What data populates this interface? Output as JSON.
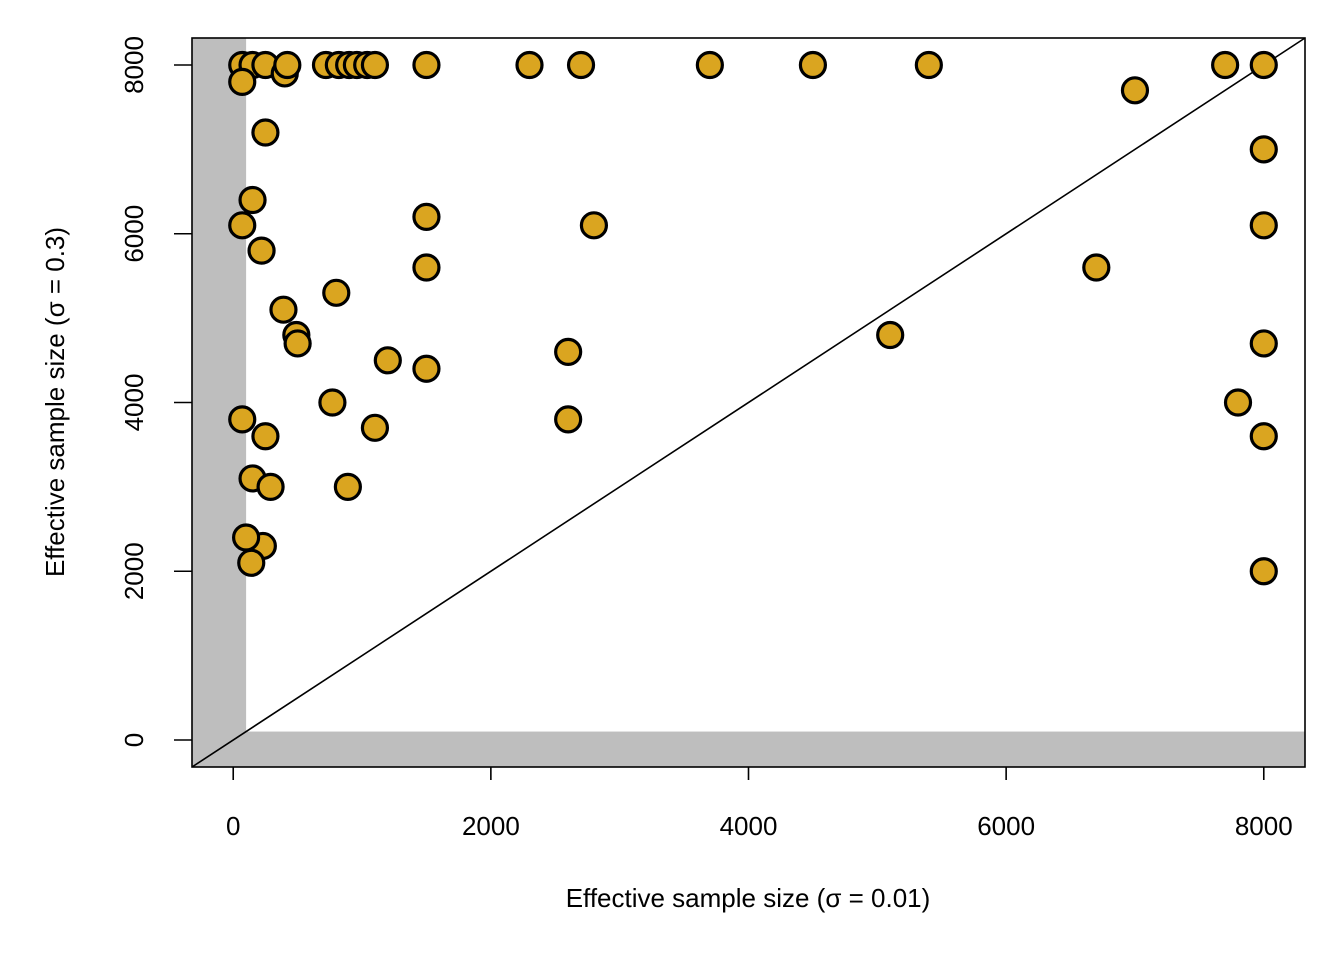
{
  "chart_data": {
    "type": "scatter",
    "xlabel": "Effective sample size (σ = 0.01)",
    "ylabel": "Effective sample size (σ = 0.3)",
    "xlim": [
      -320,
      8320
    ],
    "ylim": [
      -320,
      8320
    ],
    "xticks": [
      0,
      2000,
      4000,
      6000,
      8000
    ],
    "yticks": [
      0,
      2000,
      4000,
      6000,
      8000
    ],
    "xtick_labels": [
      "0",
      "2000",
      "4000",
      "6000",
      "8000"
    ],
    "ytick_labels": [
      "0",
      "2000",
      "4000",
      "6000",
      "8000"
    ],
    "shaded_threshold": 100,
    "shade_color": "#bebebe",
    "point_color": "#daa520",
    "reference_line": "y = x",
    "grid": false,
    "legend": "none",
    "points": [
      {
        "x": 70,
        "y": 8000
      },
      {
        "x": 150,
        "y": 8000
      },
      {
        "x": 250,
        "y": 8000
      },
      {
        "x": 400,
        "y": 7900
      },
      {
        "x": 420,
        "y": 8000
      },
      {
        "x": 720,
        "y": 8000
      },
      {
        "x": 820,
        "y": 8000
      },
      {
        "x": 900,
        "y": 8000
      },
      {
        "x": 960,
        "y": 8000
      },
      {
        "x": 1040,
        "y": 8000
      },
      {
        "x": 1100,
        "y": 8000
      },
      {
        "x": 1500,
        "y": 8000
      },
      {
        "x": 2300,
        "y": 8000
      },
      {
        "x": 2700,
        "y": 8000
      },
      {
        "x": 3700,
        "y": 8000
      },
      {
        "x": 4500,
        "y": 8000
      },
      {
        "x": 5400,
        "y": 8000
      },
      {
        "x": 7700,
        "y": 8000
      },
      {
        "x": 8000,
        "y": 8000
      },
      {
        "x": 70,
        "y": 7800
      },
      {
        "x": 250,
        "y": 7200
      },
      {
        "x": 7000,
        "y": 7700
      },
      {
        "x": 8000,
        "y": 7000
      },
      {
        "x": 150,
        "y": 6400
      },
      {
        "x": 70,
        "y": 6100
      },
      {
        "x": 220,
        "y": 5800
      },
      {
        "x": 1500,
        "y": 6200
      },
      {
        "x": 2800,
        "y": 6100
      },
      {
        "x": 8000,
        "y": 6100
      },
      {
        "x": 1500,
        "y": 5600
      },
      {
        "x": 6700,
        "y": 5600
      },
      {
        "x": 800,
        "y": 5300
      },
      {
        "x": 390,
        "y": 5100
      },
      {
        "x": 490,
        "y": 4800
      },
      {
        "x": 500,
        "y": 4700
      },
      {
        "x": 5100,
        "y": 4800
      },
      {
        "x": 8000,
        "y": 4700
      },
      {
        "x": 2600,
        "y": 4600
      },
      {
        "x": 1200,
        "y": 4500
      },
      {
        "x": 1500,
        "y": 4400
      },
      {
        "x": 770,
        "y": 4000
      },
      {
        "x": 7800,
        "y": 4000
      },
      {
        "x": 70,
        "y": 3800
      },
      {
        "x": 2600,
        "y": 3800
      },
      {
        "x": 1100,
        "y": 3700
      },
      {
        "x": 250,
        "y": 3600
      },
      {
        "x": 8000,
        "y": 3600
      },
      {
        "x": 150,
        "y": 3100
      },
      {
        "x": 290,
        "y": 3000
      },
      {
        "x": 890,
        "y": 3000
      },
      {
        "x": 230,
        "y": 2300
      },
      {
        "x": 100,
        "y": 2400
      },
      {
        "x": 140,
        "y": 2100
      },
      {
        "x": 8000,
        "y": 2000
      }
    ]
  }
}
